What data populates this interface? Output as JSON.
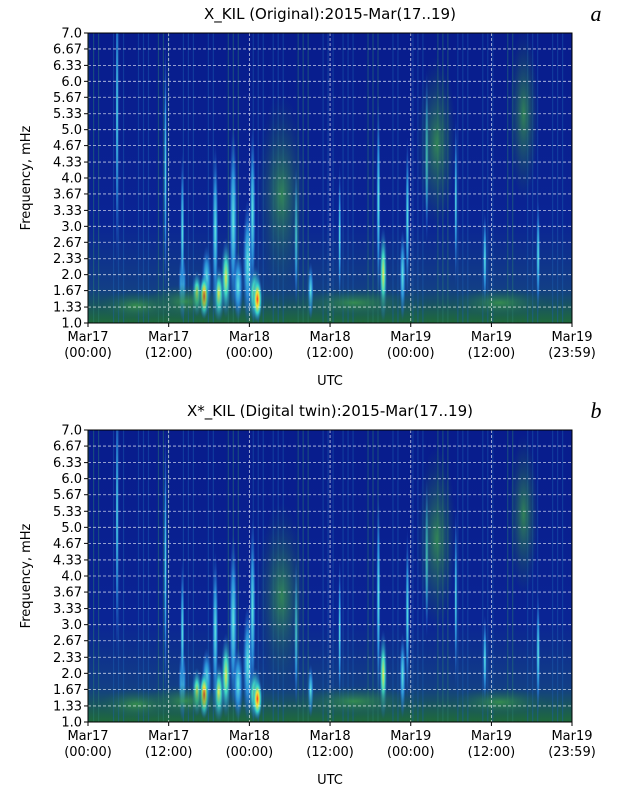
{
  "chart_data": [
    {
      "type": "spectrogram",
      "title": "X_KIL (Original):2015-Mar(17..19)",
      "panel_label": "a",
      "x_label": "UTC",
      "y_label": "Frequency, mHz",
      "grid": true,
      "xlim": [
        "2015-03-17T00:00",
        "2015-03-19T23:59"
      ],
      "xticks": [
        {
          "value": "2015-03-17T00:00",
          "label": "Mar17\n(00:00)"
        },
        {
          "value": "2015-03-17T12:00",
          "label": "Mar17\n(12:00)"
        },
        {
          "value": "2015-03-18T00:00",
          "label": "Mar18\n(00:00)"
        },
        {
          "value": "2015-03-18T12:00",
          "label": "Mar18\n(12:00)"
        },
        {
          "value": "2015-03-19T00:00",
          "label": "Mar19\n(00:00)"
        },
        {
          "value": "2015-03-19T12:00",
          "label": "Mar19\n(12:00)"
        },
        {
          "value": "2015-03-19T23:59",
          "label": "Mar19\n(23:59)"
        }
      ],
      "ylim": [
        1,
        7
      ],
      "yticks": [
        {
          "value": 1,
          "label": "1.0"
        },
        1.33,
        1.67,
        {
          "value": 2,
          "label": "2.0"
        },
        2.33,
        2.67,
        {
          "value": 3,
          "label": "3.0"
        },
        3.33,
        3.67,
        {
          "value": 4,
          "label": "4.0"
        },
        4.33,
        4.67,
        {
          "value": 5,
          "label": "5.0"
        },
        5.33,
        5.67,
        {
          "value": 6,
          "label": "6.0"
        },
        6.33,
        6.67,
        {
          "value": 7,
          "label": "7.0"
        }
      ]
    },
    {
      "type": "spectrogram",
      "title": "X*_KIL (Digital twin):2015-Mar(17..19)",
      "panel_label": "b",
      "x_label": "UTC",
      "y_label": "Frequency, mHz",
      "grid": true,
      "xlim": [
        "2015-03-17T00:00",
        "2015-03-19T23:59"
      ],
      "xticks": [
        {
          "value": "2015-03-17T00:00",
          "label": "Mar17\n(00:00)"
        },
        {
          "value": "2015-03-17T12:00",
          "label": "Mar17\n(12:00)"
        },
        {
          "value": "2015-03-18T00:00",
          "label": "Mar18\n(00:00)"
        },
        {
          "value": "2015-03-18T12:00",
          "label": "Mar18\n(12:00)"
        },
        {
          "value": "2015-03-19T00:00",
          "label": "Mar19\n(00:00)"
        },
        {
          "value": "2015-03-19T12:00",
          "label": "Mar19\n(12:00)"
        },
        {
          "value": "2015-03-19T23:59",
          "label": "Mar19\n(23:59)"
        }
      ],
      "ylim": [
        1,
        7
      ],
      "yticks": [
        {
          "value": 1,
          "label": "1.0"
        },
        1.33,
        1.67,
        {
          "value": 2,
          "label": "2.0"
        },
        2.33,
        2.67,
        {
          "value": 3,
          "label": "3.0"
        },
        3.33,
        3.67,
        {
          "value": 4,
          "label": "4.0"
        },
        4.33,
        4.67,
        {
          "value": 5,
          "label": "5.0"
        },
        5.33,
        5.67,
        {
          "value": 6,
          "label": "6.0"
        },
        6.33,
        6.67,
        {
          "value": 7,
          "label": "7.0"
        }
      ]
    }
  ]
}
